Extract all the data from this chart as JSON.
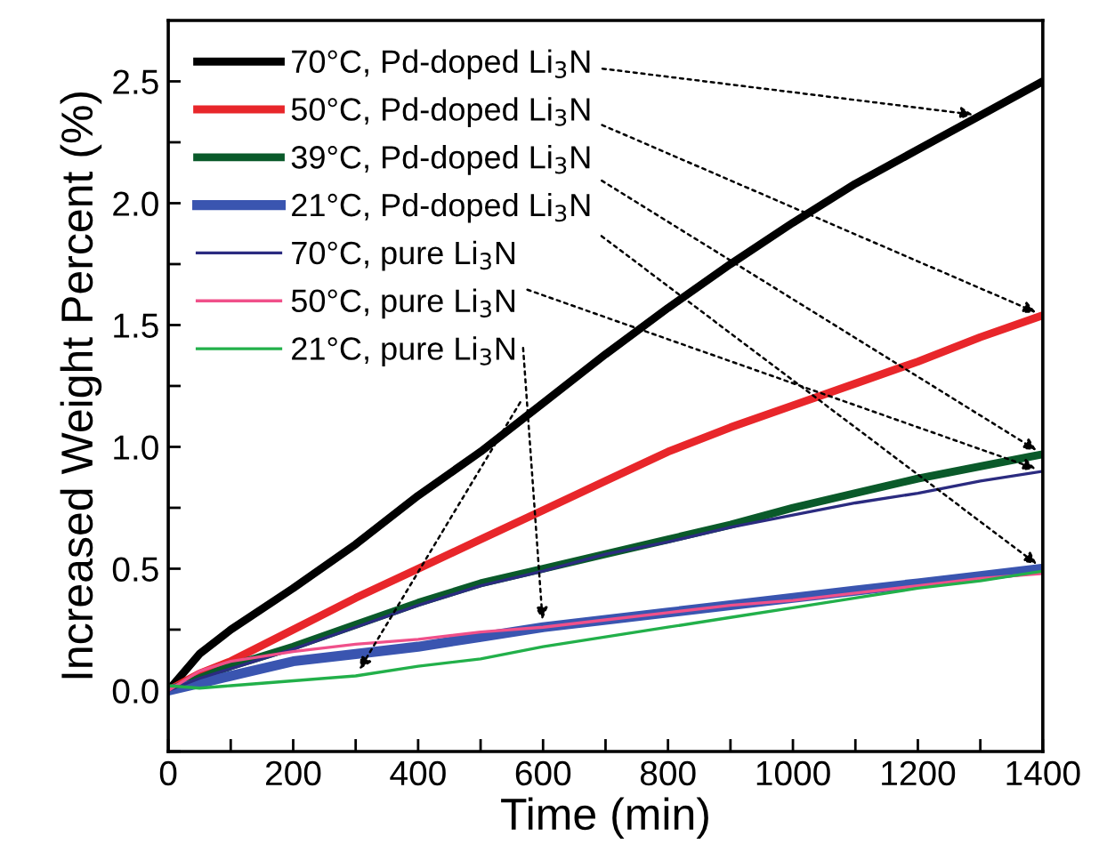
{
  "chart_data": {
    "type": "line",
    "xlabel": "Time (min)",
    "ylabel": "Increased Weight Percent (%)",
    "xlim": [
      0,
      1400
    ],
    "ylim": [
      -0.25,
      2.75
    ],
    "xticks": [
      0,
      {
        "value": 100,
        "label": null
      },
      200,
      {
        "value": 300,
        "label": null
      },
      400,
      {
        "value": 500,
        "label": null
      },
      600,
      {
        "value": 700,
        "label": null
      },
      800,
      {
        "value": 900,
        "label": null
      },
      1000,
      {
        "value": 1100,
        "label": null
      },
      1200,
      {
        "value": 1300,
        "label": null
      },
      1400
    ],
    "yticks": [
      {
        "value": -0.25,
        "label": null
      },
      "0.0",
      {
        "value": 0.25,
        "label": null
      },
      {
        "value": 0.5,
        "label": "0.5"
      },
      {
        "value": 0.75,
        "label": null
      },
      {
        "value": 1.0,
        "label": "1.0"
      },
      {
        "value": 1.25,
        "label": null
      },
      {
        "value": 1.5,
        "label": "1.5"
      },
      {
        "value": 1.75,
        "label": null
      },
      {
        "value": 2.0,
        "label": "2.0"
      },
      {
        "value": 2.25,
        "label": null
      },
      {
        "value": 2.5,
        "label": "2.5"
      }
    ],
    "grid": false,
    "legend": "top left",
    "marker": "none",
    "line_style": "solid",
    "x": [
      0,
      50,
      100,
      200,
      300,
      400,
      500,
      600,
      700,
      800,
      900,
      1000,
      1100,
      1200,
      1300,
      1400
    ],
    "series": [
      {
        "name": "70°C, Pd-doped Li$_{3}$N",
        "color": "#000000",
        "values": [
          0,
          0.15,
          0.25,
          0.42,
          0.6,
          0.8,
          0.98,
          1.18,
          1.38,
          1.57,
          1.75,
          1.92,
          2.08,
          2.22,
          2.36,
          2.5
        ]
      },
      {
        "name": "50°C, Pd-doped Li$_{3}$N",
        "color": "#e8262a",
        "values": [
          0,
          0.07,
          0.12,
          0.25,
          0.38,
          0.5,
          0.62,
          0.74,
          0.86,
          0.98,
          1.08,
          1.17,
          1.26,
          1.35,
          1.45,
          1.54
        ]
      },
      {
        "name": "39°C, Pd-doped Li$_{3}$N",
        "color": "#0a5a2a",
        "values": [
          0,
          0.05,
          0.1,
          0.18,
          0.27,
          0.36,
          0.44,
          0.5,
          0.56,
          0.62,
          0.68,
          0.75,
          0.81,
          0.87,
          0.92,
          0.97
        ]
      },
      {
        "name": "21°C, Pd-doped Li$_{3}$N",
        "color": "#3a55b0",
        "values": [
          0,
          0.03,
          0.06,
          0.12,
          0.15,
          0.18,
          0.22,
          0.26,
          0.29,
          0.32,
          0.35,
          0.38,
          0.41,
          0.44,
          0.47,
          0.5
        ]
      },
      {
        "name": "70°C, pure Li$_{3}$N",
        "color": "#2b2b80",
        "values": [
          0,
          0.05,
          0.09,
          0.17,
          0.26,
          0.35,
          0.43,
          0.49,
          0.56,
          0.61,
          0.67,
          0.72,
          0.77,
          0.81,
          0.86,
          0.9
        ]
      },
      {
        "name": "50°C, pure Li$_{3}$N",
        "color": "#f0508a",
        "values": [
          0,
          0.08,
          0.12,
          0.16,
          0.19,
          0.21,
          0.24,
          0.26,
          0.29,
          0.32,
          0.35,
          0.37,
          0.4,
          0.43,
          0.46,
          0.48
        ]
      },
      {
        "name": "21°C, pure Li$_{3}$N",
        "color": "#22b04a",
        "values": [
          0.02,
          0.01,
          0.02,
          0.04,
          0.06,
          0.1,
          0.13,
          0.18,
          0.22,
          0.26,
          0.3,
          0.34,
          0.38,
          0.42,
          0.45,
          0.49
        ]
      }
    ]
  }
}
